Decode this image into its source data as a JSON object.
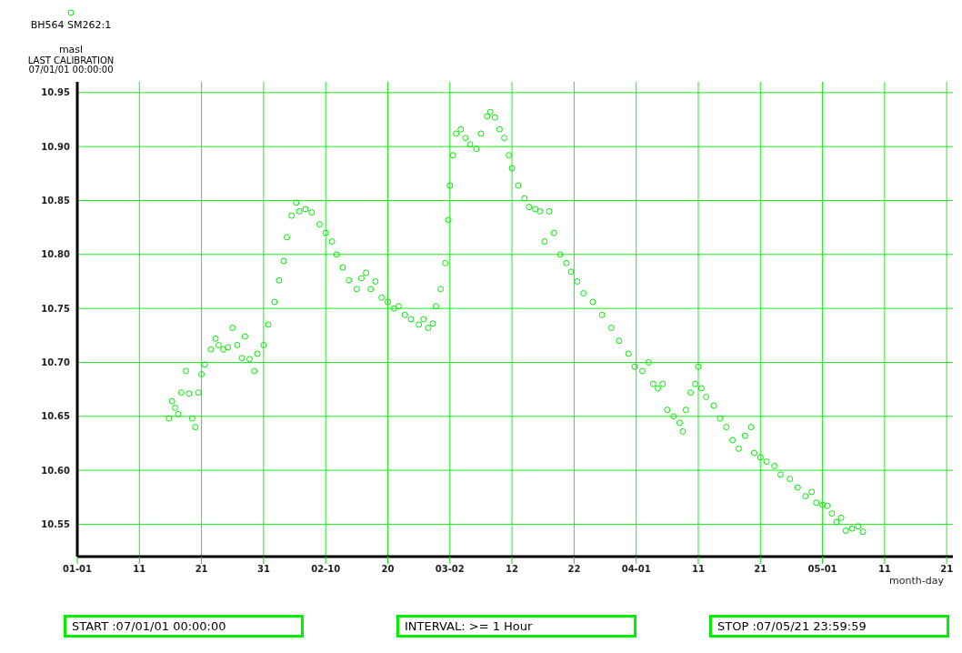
{
  "chart_data": {
    "type": "scatter",
    "title": null,
    "ylabel": "masl",
    "xlabel": "month-day",
    "legend": "top left",
    "marker": "circle",
    "grid": true,
    "annotations": [
      "LAST CALIBRATION\n07/01/01 00:00:00",
      "START :07/01/01 00:00:00",
      "INTERVAL: >= 1 Hour",
      "STOP :07/05/21 23:59:59"
    ],
    "xlim": [
      "--01-01",
      "--05-22"
    ],
    "xticks": [
      {
        "value": "--01-01",
        "label": "01-01"
      },
      {
        "value": "--01-11",
        "label": "11"
      },
      {
        "value": "--01-21",
        "label": "21"
      },
      {
        "value": "--01-31",
        "label": "31"
      },
      {
        "value": "--02-10",
        "label": "02-10"
      },
      {
        "value": "--02-20",
        "label": "20"
      },
      {
        "value": "--03-02",
        "label": "03-02"
      },
      {
        "value": "--03-12",
        "label": "12"
      },
      {
        "value": "--03-22",
        "label": "22"
      },
      {
        "value": "--04-01",
        "label": "04-01"
      },
      {
        "value": "--04-11",
        "label": "11"
      },
      {
        "value": "--04-21",
        "label": "21"
      },
      {
        "value": "--05-01",
        "label": "05-01"
      },
      {
        "value": "--05-11",
        "label": "11"
      },
      {
        "value": "--05-21",
        "label": "21"
      }
    ],
    "ylim": [
      10.52,
      10.96
    ],
    "yticks": [
      {
        "value": 10.55,
        "label": "10.55"
      },
      {
        "value": 10.6,
        "label": "10.60"
      },
      {
        "value": 10.65,
        "label": "10.65"
      },
      {
        "value": 10.7,
        "label": "10.70"
      },
      {
        "value": 10.75,
        "label": "10.75"
      },
      {
        "value": 10.8,
        "label": "10.80"
      },
      {
        "value": 10.85,
        "label": "10.85"
      },
      {
        "value": 10.9,
        "label": "10.90"
      },
      {
        "value": 10.95,
        "label": "10.95"
      }
    ],
    "series": [
      {
        "name": "BH564 SM262:1",
        "color": "#00ee00",
        "x": [
          "--01-15T18:00",
          "--01-16T06:00",
          "--01-16T18:00",
          "--01-17T06:00",
          "--01-17T18:00",
          "--01-18T12:00",
          "--01-19T00:00",
          "--01-19T12:00",
          "--01-20T00:00",
          "--01-20T12:00",
          "--01-21T00:00",
          "--01-21T12:00",
          "--01-22T12:00",
          "--01-23T06:00",
          "--01-23T18:00",
          "--01-24T12:00",
          "--01-25T06:00",
          "--01-26T00:00",
          "--01-26T18:00",
          "--01-27T12:00",
          "--01-28T00:00",
          "--01-28T18:00",
          "--01-29T12:00",
          "--01-30T00:00",
          "--01-31T00:00",
          "--01-31T18:00",
          "--02-01T18:00",
          "--02-02T12:00",
          "--02-03T06:00",
          "--02-03T18:00",
          "--02-04T12:00",
          "--02-05T06:00",
          "--02-05T18:00",
          "--02-06T18:00",
          "--02-07T18:00",
          "--02-09T00:00",
          "--02-10T00:00",
          "--02-11T00:00",
          "--02-11T18:00",
          "--02-12T18:00",
          "--02-13T18:00",
          "--02-15T00:00",
          "--02-15T18:00",
          "--02-16T12:00",
          "--02-17T06:00",
          "--02-18T00:00",
          "--02-19T00:00",
          "--02-20T00:00",
          "--02-21T00:00",
          "--02-21T18:00",
          "--02-22T18:00",
          "--02-23T18:00",
          "--02-25T00:00",
          "--02-25T18:00",
          "--02-26T12:00",
          "--02-27T06:00",
          "--02-27T18:00",
          "--02-28T12:00",
          "--03-01T06:00",
          "--03-01T18:00",
          "--03-02T00:00",
          "--03-02T12:00",
          "--03-03T00:00",
          "--03-03T18:00",
          "--03-04T12:00",
          "--03-05T06:00",
          "--03-06T06:00",
          "--03-07T00:00",
          "--03-08T00:00",
          "--03-08T12:00",
          "--03-09T06:00",
          "--03-10T00:00",
          "--03-10T18:00",
          "--03-11T12:00",
          "--03-12T00:00",
          "--03-13T00:00",
          "--03-14T00:00",
          "--03-14T18:00",
          "--03-15T18:00",
          "--03-16T12:00",
          "--03-17T06:00",
          "--03-18T00:00",
          "--03-18T18:00",
          "--03-19T18:00",
          "--03-20T18:00",
          "--03-21T12:00",
          "--03-22T12:00",
          "--03-23T12:00",
          "--03-25T00:00",
          "--03-26T12:00",
          "--03-28T00:00",
          "--03-29T06:00",
          "--03-30T18:00",
          "--03-31T18:00",
          "--04-02T00:00",
          "--04-03T00:00",
          "--04-03T18:00",
          "--04-04T12:00",
          "--04-05T06:00",
          "--04-06T00:00",
          "--04-07T00:00",
          "--04-08T00:00",
          "--04-08T12:00",
          "--04-09T00:00",
          "--04-09T18:00",
          "--04-10T12:00",
          "--04-11T00:00",
          "--04-11T12:00",
          "--04-12T06:00",
          "--04-13T12:00",
          "--04-14T12:00",
          "--04-15T12:00",
          "--04-16T12:00",
          "--04-17T12:00",
          "--04-18T12:00",
          "--04-19T12:00",
          "--04-20T00:00",
          "--04-21T00:00",
          "--04-22T00:00",
          "--04-23T06:00",
          "--04-24T06:00",
          "--04-25T18:00",
          "--04-27T00:00",
          "--04-28T06:00",
          "--04-29T06:00",
          "--04-30T00:00",
          "--05-01T00:00",
          "--05-01T18:00",
          "--05-02T12:00",
          "--05-03T06:00",
          "--05-04T00:00",
          "--05-04T18:00",
          "--05-05T18:00",
          "--05-06T18:00",
          "--05-07T12:00"
        ],
        "values": [
          10.648,
          10.664,
          10.658,
          10.652,
          10.672,
          10.692,
          10.671,
          10.648,
          10.64,
          10.672,
          10.689,
          10.698,
          10.712,
          10.722,
          10.716,
          10.712,
          10.714,
          10.732,
          10.716,
          10.704,
          10.724,
          10.703,
          10.692,
          10.708,
          10.716,
          10.735,
          10.756,
          10.776,
          10.794,
          10.816,
          10.836,
          10.848,
          10.84,
          10.842,
          10.839,
          10.828,
          10.82,
          10.812,
          10.8,
          10.788,
          10.776,
          10.768,
          10.778,
          10.783,
          10.768,
          10.775,
          10.76,
          10.756,
          10.75,
          10.752,
          10.744,
          10.74,
          10.735,
          10.74,
          10.732,
          10.736,
          10.752,
          10.768,
          10.792,
          10.832,
          10.864,
          10.892,
          10.912,
          10.916,
          10.908,
          10.902,
          10.898,
          10.912,
          10.928,
          10.932,
          10.927,
          10.916,
          10.908,
          10.892,
          10.88,
          10.864,
          10.852,
          10.844,
          10.842,
          10.84,
          10.812,
          10.84,
          10.82,
          10.8,
          10.792,
          10.784,
          10.775,
          10.764,
          10.756,
          10.744,
          10.732,
          10.72,
          10.708,
          10.696,
          10.692,
          10.7,
          10.68,
          10.676,
          10.68,
          10.656,
          10.65,
          10.644,
          10.636,
          10.656,
          10.672,
          10.68,
          10.696,
          10.676,
          10.668,
          10.66,
          10.648,
          10.64,
          10.628,
          10.62,
          10.632,
          10.64,
          10.616,
          10.612,
          10.608,
          10.604,
          10.596,
          10.592,
          10.584,
          10.576,
          10.58,
          10.57,
          10.568,
          10.567,
          10.56,
          10.552,
          10.556,
          10.544,
          10.546,
          10.548,
          10.543
        ]
      }
    ]
  }
}
